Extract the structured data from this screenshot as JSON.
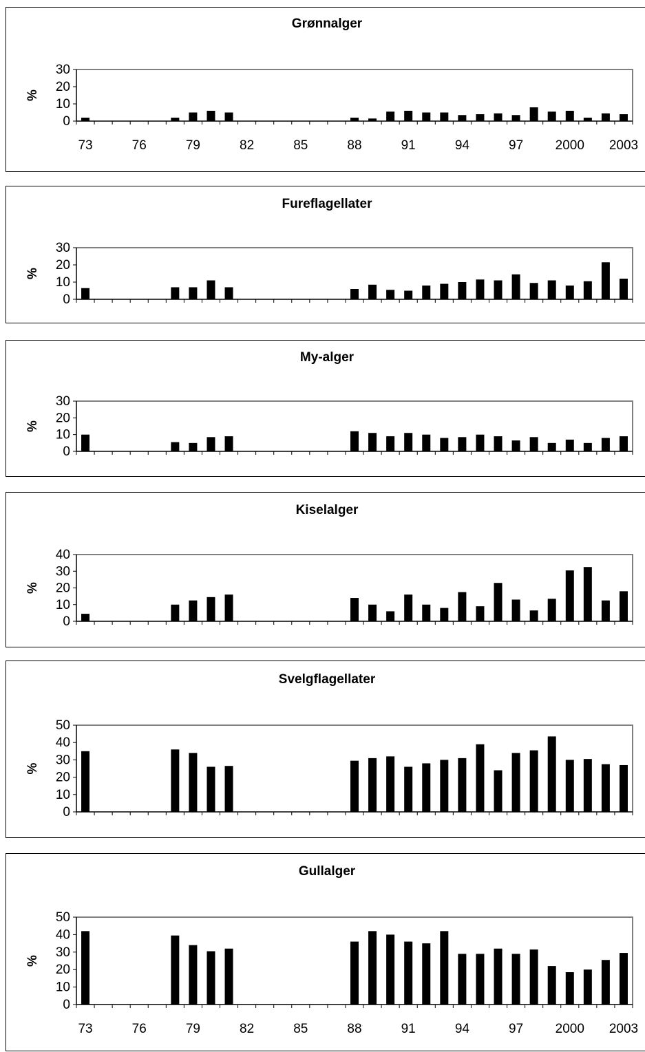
{
  "chart_data": [
    {
      "type": "bar",
      "title": "Grønnalger",
      "ylabel": "%",
      "ylim": [
        0,
        30
      ],
      "yticks": [
        0,
        10,
        20,
        30
      ],
      "xticks": [
        "73",
        "76",
        "79",
        "82",
        "85",
        "88",
        "91",
        "94",
        "97",
        "2000",
        "2003"
      ],
      "grid": false,
      "legend": "none",
      "categories": [
        1973,
        1974,
        1975,
        1976,
        1977,
        1978,
        1979,
        1980,
        1981,
        1982,
        1983,
        1984,
        1985,
        1986,
        1987,
        1988,
        1989,
        1990,
        1991,
        1992,
        1993,
        1994,
        1995,
        1996,
        1997,
        1998,
        1999,
        2000,
        2001,
        2002,
        2003
      ],
      "values": [
        2,
        0,
        0,
        0,
        0,
        2,
        5,
        6,
        5,
        0,
        0,
        0,
        0,
        0,
        0,
        2,
        1.5,
        5.5,
        6,
        5,
        5,
        3.5,
        4,
        4.5,
        3.5,
        8,
        5.5,
        6,
        2,
        4.5,
        4
      ]
    },
    {
      "type": "bar",
      "title": "Fureflagellater",
      "ylabel": "%",
      "ylim": [
        0,
        30
      ],
      "yticks": [
        0,
        10,
        20,
        30
      ],
      "grid": false,
      "legend": "none",
      "categories": [
        1973,
        1974,
        1975,
        1976,
        1977,
        1978,
        1979,
        1980,
        1981,
        1982,
        1983,
        1984,
        1985,
        1986,
        1987,
        1988,
        1989,
        1990,
        1991,
        1992,
        1993,
        1994,
        1995,
        1996,
        1997,
        1998,
        1999,
        2000,
        2001,
        2002,
        2003
      ],
      "values": [
        6.5,
        0,
        0,
        0,
        0,
        7,
        7,
        11,
        7,
        0,
        0,
        0,
        0,
        0,
        0,
        6,
        8.5,
        5.5,
        5,
        8,
        9,
        10,
        11.5,
        11,
        14.5,
        9.5,
        11,
        8,
        10.5,
        21.5,
        12
      ]
    },
    {
      "type": "bar",
      "title": "My-alger",
      "ylabel": "%",
      "ylim": [
        0,
        30
      ],
      "yticks": [
        0,
        10,
        20,
        30
      ],
      "grid": false,
      "legend": "none",
      "categories": [
        1973,
        1974,
        1975,
        1976,
        1977,
        1978,
        1979,
        1980,
        1981,
        1982,
        1983,
        1984,
        1985,
        1986,
        1987,
        1988,
        1989,
        1990,
        1991,
        1992,
        1993,
        1994,
        1995,
        1996,
        1997,
        1998,
        1999,
        2000,
        2001,
        2002,
        2003
      ],
      "values": [
        10,
        0,
        0,
        0,
        0,
        5.5,
        5,
        8.5,
        9,
        0,
        0,
        0,
        0,
        0,
        0,
        12,
        11,
        9,
        11,
        10,
        8,
        8.5,
        10,
        9,
        6.5,
        8.5,
        5,
        7,
        5,
        8,
        9
      ]
    },
    {
      "type": "bar",
      "title": "Kiselalger",
      "ylabel": "%",
      "ylim": [
        0,
        40
      ],
      "yticks": [
        0,
        10,
        20,
        30,
        40
      ],
      "grid": false,
      "legend": "none",
      "categories": [
        1973,
        1974,
        1975,
        1976,
        1977,
        1978,
        1979,
        1980,
        1981,
        1982,
        1983,
        1984,
        1985,
        1986,
        1987,
        1988,
        1989,
        1990,
        1991,
        1992,
        1993,
        1994,
        1995,
        1996,
        1997,
        1998,
        1999,
        2000,
        2001,
        2002,
        2003
      ],
      "values": [
        4.5,
        0,
        0,
        0,
        0,
        10,
        12.5,
        14.5,
        16,
        0,
        0,
        0,
        0,
        0,
        0,
        14,
        10,
        6,
        16,
        10,
        8,
        17.5,
        9,
        23,
        13,
        6.5,
        13.5,
        30.5,
        32.5,
        12.5,
        18
      ]
    },
    {
      "type": "bar",
      "title": "Svelgflagellater",
      "ylabel": "%",
      "ylim": [
        0,
        50
      ],
      "yticks": [
        0,
        10,
        20,
        30,
        40,
        50
      ],
      "grid": false,
      "legend": "none",
      "categories": [
        1973,
        1974,
        1975,
        1976,
        1977,
        1978,
        1979,
        1980,
        1981,
        1982,
        1983,
        1984,
        1985,
        1986,
        1987,
        1988,
        1989,
        1990,
        1991,
        1992,
        1993,
        1994,
        1995,
        1996,
        1997,
        1998,
        1999,
        2000,
        2001,
        2002,
        2003
      ],
      "values": [
        35,
        0,
        0,
        0,
        0,
        36,
        34,
        26,
        26.5,
        0,
        0,
        0,
        0,
        0,
        0,
        29.5,
        31,
        32,
        26,
        28,
        30,
        31,
        39,
        24,
        34,
        35.5,
        43.5,
        30,
        30.5,
        27.5,
        27
      ]
    },
    {
      "type": "bar",
      "title": "Gullalger",
      "ylabel": "%",
      "ylim": [
        0,
        50
      ],
      "yticks": [
        0,
        10,
        20,
        30,
        40,
        50
      ],
      "xticks": [
        "73",
        "76",
        "79",
        "82",
        "85",
        "88",
        "91",
        "94",
        "97",
        "2000",
        "2003"
      ],
      "grid": false,
      "legend": "none",
      "categories": [
        1973,
        1974,
        1975,
        1976,
        1977,
        1978,
        1979,
        1980,
        1981,
        1982,
        1983,
        1984,
        1985,
        1986,
        1987,
        1988,
        1989,
        1990,
        1991,
        1992,
        1993,
        1994,
        1995,
        1996,
        1997,
        1998,
        1999,
        2000,
        2001,
        2002,
        2003
      ],
      "values": [
        42,
        0,
        0,
        0,
        0,
        39.5,
        34,
        30.5,
        32,
        0,
        0,
        0,
        0,
        0,
        0,
        36,
        42,
        40,
        36,
        35,
        42,
        29,
        29,
        32,
        29,
        31.5,
        22,
        18.5,
        20,
        25.5,
        29.5
      ]
    }
  ]
}
